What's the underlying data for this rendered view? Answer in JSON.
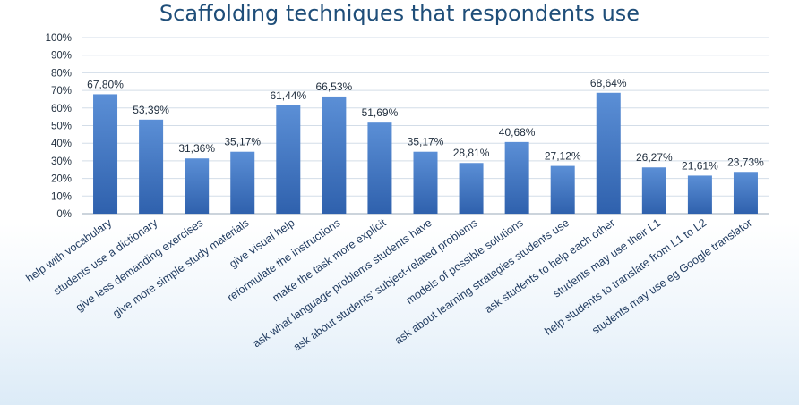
{
  "chart_data": {
    "type": "bar",
    "title": "Scaffolding techniques that respondents use",
    "xlabel": "",
    "ylabel": "",
    "ylim": [
      0,
      100
    ],
    "yticks": [
      "0%",
      "10%",
      "20%",
      "30%",
      "40%",
      "50%",
      "60%",
      "70%",
      "80%",
      "90%",
      "100%"
    ],
    "grid": true,
    "legend": "none",
    "bar_color": "#4a7ec6",
    "categories": [
      "help with vocabulary",
      "students use a dictionary",
      "give less demanding exercises",
      "give more simple study materials",
      "give visual help",
      "reformulate the instructions",
      "make the task more explicit",
      "ask what language problems students have",
      "ask about students' subject-related problems",
      "models of possible solutions",
      "ask about learning strategies students use",
      "ask students to help each other",
      "students may use their L1",
      "help students to translate from L1 to L2",
      "students may use eg Google translator"
    ],
    "values": [
      67.8,
      53.39,
      31.36,
      35.17,
      61.44,
      66.53,
      51.69,
      35.17,
      28.81,
      40.68,
      27.12,
      68.64,
      26.27,
      21.61,
      23.73
    ],
    "data_labels": [
      "67,80%",
      "53,39%",
      "31,36%",
      "35,17%",
      "61,44%",
      "66,53%",
      "51,69%",
      "35,17%",
      "28,81%",
      "40,68%",
      "27,12%",
      "68,64%",
      "26,27%",
      "21,61%",
      "23,73%"
    ]
  }
}
